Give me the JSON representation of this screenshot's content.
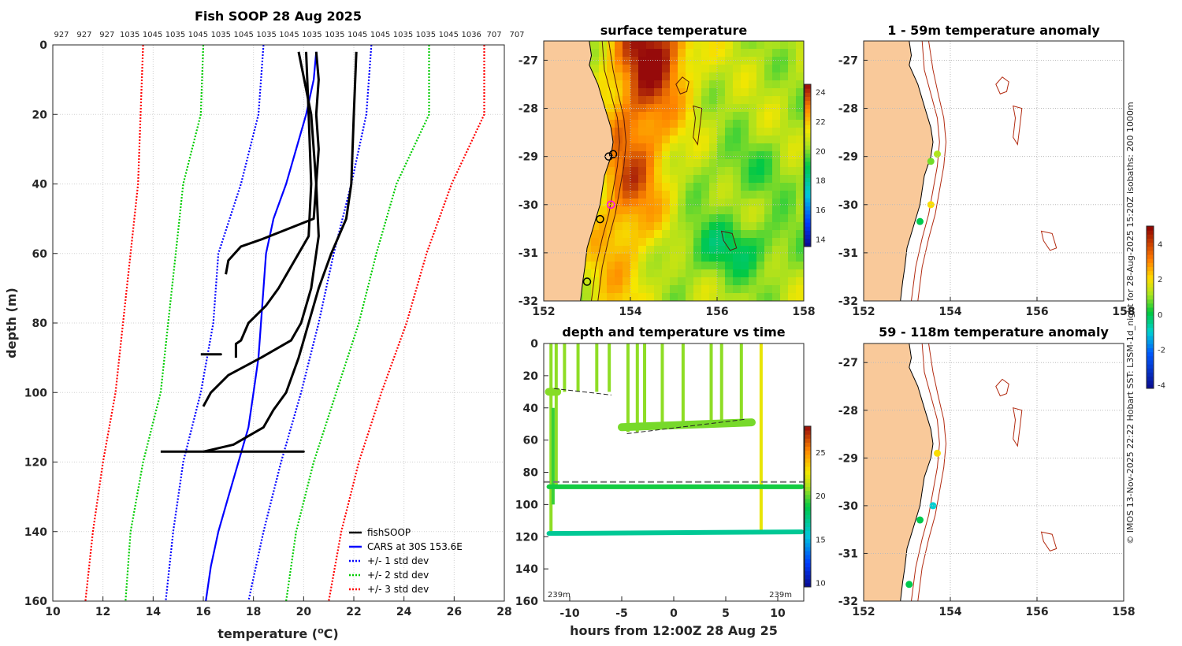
{
  "credit": "© IMOS 13-Nov-2025 22:22 Hobart SST: L3SM-1d_night for 28-Aug-2025 15:20Z isobaths: 200  1000m",
  "chart_data": [
    {
      "type": "line",
      "title": "Fish SOOP 28 Aug 2025",
      "xlabel": "temperature (°C)",
      "ylabel": "depth (m)",
      "xlim": [
        10,
        28
      ],
      "ylim": [
        160,
        0
      ],
      "x_ticks": [
        "10",
        "12",
        "14",
        "16",
        "18",
        "20",
        "22",
        "24",
        "26",
        "28"
      ],
      "y_ticks": [
        "0",
        "20",
        "40",
        "60",
        "80",
        "100",
        "120",
        "140",
        "160"
      ],
      "top_labels": [
        "927",
        "927",
        "927",
        "1035",
        "1045",
        "1035",
        "1045",
        "1035",
        "1045",
        "1035",
        "1045",
        "1035",
        "1035",
        "1045",
        "1045",
        "1035",
        "1035",
        "1045",
        "1036",
        "707",
        "707"
      ],
      "legend": [
        "fishSOOP",
        "CARS at 30S 153.6E",
        "+/- 1 std dev",
        "+/- 2 std dev",
        "+/- 3 std dev"
      ],
      "series": [
        {
          "name": "CARS at 30S 153.6E",
          "color": "#0000ff",
          "style": "solid",
          "depth": [
            2,
            10,
            20,
            30,
            40,
            50,
            60,
            70,
            80,
            90,
            100,
            110,
            120,
            130,
            140,
            150,
            160
          ],
          "temp": [
            20.5,
            20.4,
            20.1,
            19.7,
            19.3,
            18.8,
            18.5,
            18.4,
            18.3,
            18.2,
            18.0,
            17.8,
            17.4,
            17.0,
            16.6,
            16.3,
            16.1
          ]
        },
        {
          "name": "-1 std dev",
          "color": "#0000ff",
          "style": "dotted",
          "depth": [
            0,
            20,
            40,
            60,
            80,
            100,
            120,
            140,
            160
          ],
          "temp": [
            18.4,
            18.2,
            17.5,
            16.6,
            16.4,
            15.9,
            15.2,
            14.8,
            14.5
          ]
        },
        {
          "name": "+1 std dev",
          "color": "#0000ff",
          "style": "dotted",
          "depth": [
            0,
            20,
            40,
            60,
            80,
            100,
            120,
            140,
            160
          ],
          "temp": [
            22.7,
            22.5,
            21.9,
            21.2,
            20.6,
            19.9,
            19.1,
            18.4,
            17.8
          ]
        },
        {
          "name": "-2 std dev",
          "color": "#00cc00",
          "style": "dotted",
          "depth": [
            0,
            20,
            40,
            60,
            80,
            100,
            120,
            140,
            160
          ],
          "temp": [
            16.0,
            15.9,
            15.2,
            14.9,
            14.6,
            14.3,
            13.6,
            13.1,
            12.9
          ]
        },
        {
          "name": "+2 std dev",
          "color": "#00cc00",
          "style": "dotted",
          "depth": [
            0,
            20,
            40,
            60,
            80,
            100,
            120,
            140,
            160
          ],
          "temp": [
            25.0,
            25.0,
            23.7,
            22.9,
            22.2,
            21.3,
            20.4,
            19.7,
            19.3
          ]
        },
        {
          "name": "-3 std dev",
          "color": "#ff0000",
          "style": "dotted",
          "depth": [
            0,
            20,
            40,
            60,
            80,
            100,
            120,
            140,
            160
          ],
          "temp": [
            13.6,
            13.5,
            13.4,
            13.1,
            12.8,
            12.5,
            12.0,
            11.6,
            11.3
          ]
        },
        {
          "name": "+3 std dev",
          "color": "#ff0000",
          "style": "dotted",
          "depth": [
            0,
            20,
            40,
            60,
            80,
            100,
            120,
            140,
            160
          ],
          "temp": [
            27.2,
            27.2,
            25.9,
            24.9,
            24.1,
            23.1,
            22.2,
            21.5,
            21.0
          ]
        },
        {
          "name": "fishSOOP a",
          "color": "#000000",
          "style": "solid",
          "depth": [
            2,
            10,
            20,
            30,
            40,
            50,
            56,
            58,
            62,
            66
          ],
          "temp": [
            20.5,
            20.6,
            20.5,
            20.6,
            20.5,
            20.4,
            18.3,
            17.5,
            17.0,
            16.9
          ]
        },
        {
          "name": "fishSOOP b",
          "color": "#000000",
          "style": "solid",
          "depth": [
            2,
            20,
            40,
            55,
            70,
            75,
            80,
            85,
            86,
            90
          ],
          "temp": [
            20.1,
            20.2,
            20.3,
            20.2,
            19.0,
            18.5,
            17.8,
            17.5,
            17.3,
            17.3
          ]
        },
        {
          "name": "fishSOOP c",
          "color": "#000000",
          "style": "solid",
          "depth": [
            2,
            20,
            40,
            55,
            70,
            80,
            85,
            90,
            95,
            100,
            104
          ],
          "temp": [
            19.8,
            20.3,
            20.5,
            20.6,
            20.3,
            19.9,
            19.5,
            18.3,
            17.0,
            16.3,
            16.0
          ]
        },
        {
          "name": "fishSOOP d",
          "color": "#000000",
          "style": "solid",
          "depth": [
            2,
            20,
            40,
            50,
            60,
            70,
            80,
            90,
            100,
            105,
            110,
            115,
            117
          ],
          "temp": [
            22.1,
            22.0,
            21.9,
            21.7,
            21.1,
            20.6,
            20.2,
            19.8,
            19.3,
            18.8,
            18.4,
            17.2,
            16.0
          ]
        },
        {
          "name": "fishSOOP e",
          "color": "#000000",
          "style": "solid",
          "depth": [
            117,
            117,
            117,
            117,
            117
          ],
          "temp": [
            14.3,
            20.0,
            14.5,
            19.8,
            14.8
          ]
        },
        {
          "name": "fishSOOP f",
          "color": "#000000",
          "style": "solid",
          "depth": [
            89,
            89,
            89
          ],
          "temp": [
            15.9,
            16.7,
            16.1
          ]
        }
      ]
    },
    {
      "type": "heatmap",
      "title": "surface temperature",
      "xlim": [
        152,
        158
      ],
      "ylim": [
        -32,
        -26.6
      ],
      "x_ticks": [
        "152",
        "154",
        "156",
        "158"
      ],
      "y_ticks": [
        "-27",
        "-28",
        "-29",
        "-30",
        "-31",
        "-32"
      ],
      "colorbar_ticks": [
        "14",
        "16",
        "18",
        "20",
        "22",
        "24"
      ],
      "colorbar_range": [
        13.5,
        24.5
      ],
      "markers": [
        {
          "lon": 153.6,
          "lat": -28.95,
          "kind": "black-circle"
        },
        {
          "lon": 153.5,
          "lat": -29.0,
          "kind": "black-circle"
        },
        {
          "lon": 153.3,
          "lat": -30.3,
          "kind": "black-circle"
        },
        {
          "lon": 153.0,
          "lat": -31.6,
          "kind": "black-circle"
        },
        {
          "lon": 153.55,
          "lat": -30.0,
          "kind": "magenta-circle"
        }
      ]
    },
    {
      "type": "heatmap",
      "title": "depth and temperature vs time",
      "xlabel": "hours from 12:00Z 28 Aug 25",
      "xlim": [
        -12.5,
        12.5
      ],
      "ylim": [
        160,
        0
      ],
      "x_ticks": [
        "-10",
        "-5",
        "0",
        "5",
        "10"
      ],
      "y_ticks": [
        "0",
        "20",
        "40",
        "60",
        "80",
        "100",
        "120",
        "140",
        "160"
      ],
      "colorbar_ticks": [
        "10",
        "15",
        "20",
        "25"
      ],
      "colorbar_range": [
        9.5,
        28
      ],
      "bottom_depth_m": 86,
      "corner_labels": [
        "239m",
        "239m"
      ],
      "tracks": [
        {
          "hours": [
            -12,
            -11.2
          ],
          "depth": [
            30,
            30
          ],
          "temp": 20.5
        },
        {
          "hours": [
            -5,
            7.5
          ],
          "depth": [
            52,
            49
          ],
          "temp": 20.3
        },
        {
          "hours": [
            -12,
            12.3
          ],
          "depth": [
            89,
            89
          ],
          "temp": 19.0
        },
        {
          "hours": [
            -12,
            12.3
          ],
          "depth": [
            118,
            117
          ],
          "temp": 17.0
        }
      ]
    },
    {
      "type": "scatter",
      "title": "1 - 59m temperature anomaly",
      "xlim": [
        152,
        158
      ],
      "ylim": [
        -32,
        -26.6
      ],
      "x_ticks": [
        "152",
        "154",
        "156",
        "158"
      ],
      "y_ticks": [
        "-27",
        "-28",
        "-29",
        "-30",
        "-31",
        "-32"
      ],
      "points": [
        {
          "lon": 153.7,
          "lat": -28.95,
          "anom": 1.2
        },
        {
          "lon": 153.55,
          "lat": -29.1,
          "anom": 0.8
        },
        {
          "lon": 153.55,
          "lat": -30.0,
          "anom": 2.0
        },
        {
          "lon": 153.3,
          "lat": -30.35,
          "anom": 0.0
        }
      ]
    },
    {
      "type": "scatter",
      "title": "59 - 118m temperature anomaly",
      "xlim": [
        152,
        158
      ],
      "ylim": [
        -32,
        -26.6
      ],
      "x_ticks": [
        "152",
        "154",
        "156",
        "158"
      ],
      "y_ticks": [
        "-27",
        "-28",
        "-29",
        "-30",
        "-31",
        "-32"
      ],
      "colorbar_ticks": [
        "-4",
        "-2",
        "0",
        "2",
        "4"
      ],
      "colorbar_range": [
        -4.2,
        5
      ],
      "points": [
        {
          "lon": 153.7,
          "lat": -28.9,
          "anom": 2.0
        },
        {
          "lon": 153.6,
          "lat": -30.0,
          "anom": -1.0
        },
        {
          "lon": 153.3,
          "lat": -30.3,
          "anom": 0.0
        },
        {
          "lon": 153.05,
          "lat": -31.65,
          "anom": 0.0
        }
      ]
    }
  ]
}
